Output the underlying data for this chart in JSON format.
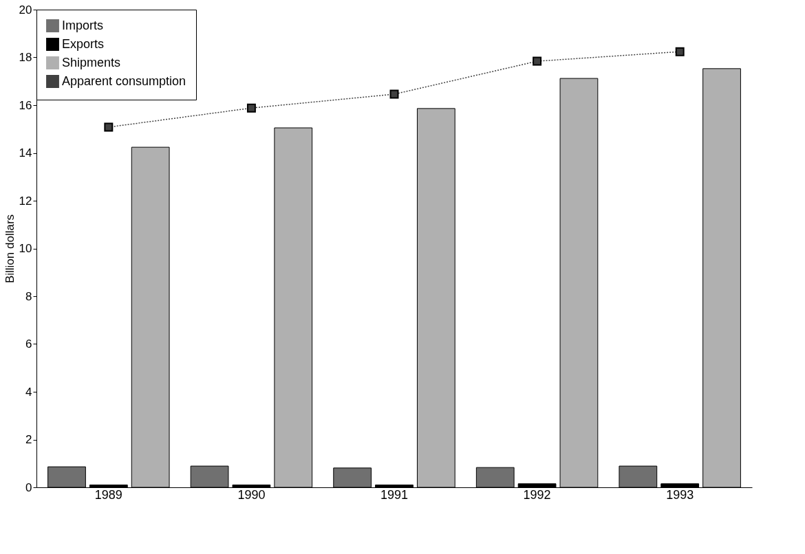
{
  "chart_data": {
    "type": "bar",
    "ylabel": "Billion dollars",
    "categories": [
      "1989",
      "1990",
      "1991",
      "1992",
      "1993"
    ],
    "series": [
      {
        "name": "Imports",
        "color": "#707070",
        "values": [
          0.86,
          0.89,
          0.81,
          0.83,
          0.89
        ]
      },
      {
        "name": "Exports",
        "color": "#000000",
        "values": [
          0.1,
          0.1,
          0.1,
          0.15,
          0.15
        ]
      },
      {
        "name": "Shipments",
        "color": "#b0b0b0",
        "values": [
          14.24,
          15.05,
          15.86,
          17.12,
          17.53
        ]
      },
      {
        "name": "Apparent consumption",
        "type": "line",
        "color": "#404040",
        "marker": "square",
        "line_style": "dotted",
        "values": [
          15.08,
          15.88,
          16.46,
          17.84,
          18.24
        ]
      }
    ],
    "ylim": [
      0,
      20
    ],
    "yticks": [
      0,
      2,
      4,
      6,
      8,
      10,
      12,
      14,
      16,
      18,
      20
    ],
    "grid": false,
    "legend": "top left"
  }
}
